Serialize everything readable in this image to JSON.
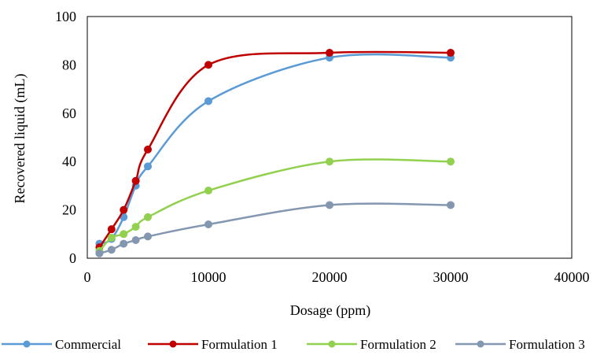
{
  "chart_data": {
    "type": "line",
    "smooth": true,
    "title": "",
    "xlabel": "Dosage (ppm)",
    "ylabel": "Recovered liquid (mL)",
    "xlim": [
      0,
      40000
    ],
    "ylim": [
      0,
      100
    ],
    "x_ticks": [
      "0",
      "10000",
      "20000",
      "30000",
      "40000"
    ],
    "y_ticks": [
      "0",
      "20",
      "40",
      "60",
      "80",
      "100"
    ],
    "grid": false,
    "legend_position": "bottom",
    "series": [
      {
        "name": "Commercial",
        "color": "#5B9BD5",
        "x": [
          1000,
          2000,
          3000,
          4000,
          5000,
          10000,
          20000,
          30000
        ],
        "y": [
          6,
          8,
          17,
          30,
          38,
          65,
          83,
          83
        ]
      },
      {
        "name": "Formulation 1",
        "color": "#C00000",
        "x": [
          1000,
          2000,
          3000,
          4000,
          5000,
          10000,
          20000,
          30000
        ],
        "y": [
          4.5,
          12,
          20,
          32,
          45,
          80,
          85,
          85
        ]
      },
      {
        "name": "Formulation 2",
        "color": "#92D050",
        "x": [
          1000,
          2000,
          3000,
          4000,
          5000,
          10000,
          20000,
          30000
        ],
        "y": [
          3,
          8.5,
          10,
          13,
          17,
          28,
          40,
          40
        ]
      },
      {
        "name": "Formulation 3",
        "color": "#8497B0",
        "x": [
          1000,
          2000,
          3000,
          4000,
          5000,
          10000,
          20000,
          30000
        ],
        "y": [
          2,
          3.5,
          6,
          7.5,
          9,
          14,
          22,
          22
        ]
      }
    ]
  }
}
